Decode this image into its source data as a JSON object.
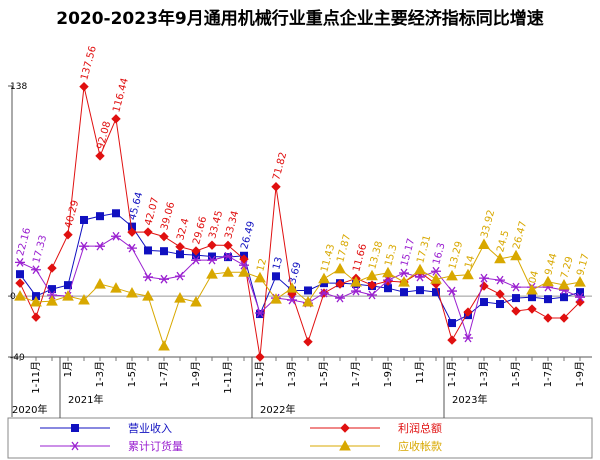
{
  "chart_data": {
    "type": "line",
    "title": "2020-2023年9月通用机械行业重点企业主要经济指标同比增速",
    "categories": [
      null,
      "1-11月",
      null,
      "1月",
      null,
      "1-3月",
      null,
      "1-5月",
      null,
      "1-7月",
      null,
      "1-9月",
      null,
      "1-11月",
      null,
      "1-1月",
      null,
      "1-3月",
      null,
      "1-5月",
      null,
      "1-7月",
      null,
      "1-9月",
      null,
      "11月",
      null,
      "1-1月",
      null,
      "1-3月",
      null,
      "1-5月",
      null,
      "1-7月",
      null,
      "1-9月"
    ],
    "year_labels": [
      "2020年",
      "2021年",
      "2022年",
      "2023年"
    ],
    "ylim": [
      -40,
      138
    ],
    "yticks": [
      138,
      0,
      -40
    ],
    "series": [
      {
        "name": "营业收入",
        "color": "#1010c0",
        "marker": "square",
        "values": [
          14.4,
          0,
          4.6,
          7.2,
          50,
          52.5,
          54.4,
          45.64,
          30,
          29.5,
          27.5,
          26.9,
          26,
          25.6,
          26.49,
          -11.8,
          13,
          3.69,
          3.7,
          8.5,
          8.5,
          7.9,
          6.6,
          5.2,
          2.6,
          3.9,
          2.6,
          -17.7,
          -12.5,
          -3.9,
          -5.2,
          -1.3,
          -0.7,
          -2,
          -0.7,
          2.6
        ],
        "value_labels": [
          null,
          null,
          null,
          null,
          null,
          null,
          null,
          "45.64",
          null,
          null,
          null,
          null,
          null,
          null,
          "26.49",
          null,
          "13",
          "3.69",
          null,
          null,
          null,
          null,
          null,
          null,
          null,
          null,
          null,
          null,
          null,
          null,
          null,
          null,
          null,
          null,
          null,
          null
        ]
      },
      {
        "name": "利润总额",
        "color": "#e01010",
        "marker": "diamond",
        "values": [
          8.5,
          -13.8,
          18.4,
          40.29,
          137.56,
          92.08,
          116.44,
          42,
          42.07,
          39.06,
          32.4,
          29.66,
          33.45,
          33.34,
          24.3,
          -40,
          71.82,
          1.3,
          -30,
          2,
          7.9,
          11.66,
          7.2,
          9.8,
          9.2,
          15.7,
          7.9,
          -28.9,
          -10.5,
          6.6,
          1.3,
          -9.8,
          -8.5,
          -14.4,
          -14.4,
          -3.9
        ],
        "value_labels": [
          null,
          null,
          null,
          "40.29",
          "137.56",
          "92.08",
          "116.44",
          null,
          "42.07",
          "39.06",
          "32.4",
          "29.66",
          "33.45",
          "33.34",
          null,
          null,
          "71.82",
          null,
          null,
          null,
          null,
          "11.66",
          null,
          null,
          null,
          null,
          null,
          null,
          null,
          null,
          null,
          null,
          null,
          null,
          null,
          null
        ]
      },
      {
        "name": "累计订货量",
        "color": "#9a20d0",
        "marker": "star",
        "values": [
          22.16,
          17.33,
          0.7,
          0,
          32.8,
          32.8,
          39.3,
          31.5,
          12.5,
          11.1,
          13.1,
          23.6,
          23.6,
          26.2,
          20.3,
          -11.1,
          -1.3,
          -2.6,
          -4.6,
          2,
          -1.3,
          3.3,
          0.7,
          10.5,
          15.17,
          12.5,
          16.3,
          3.3,
          -27.5,
          11.8,
          10.5,
          5.9,
          5.9,
          5.9,
          3.9,
          -0.7
        ],
        "value_labels": [
          "22.16",
          "17.33",
          null,
          null,
          null,
          null,
          null,
          null,
          null,
          null,
          null,
          null,
          null,
          null,
          null,
          null,
          null,
          null,
          null,
          null,
          null,
          null,
          null,
          null,
          "15.17",
          null,
          "16.3",
          null,
          null,
          null,
          null,
          null,
          null,
          null,
          null,
          null
        ]
      },
      {
        "name": "应收帐款",
        "color": "#d8a800",
        "marker": "triangle",
        "values": [
          0,
          -3.9,
          -3.3,
          0,
          -2.6,
          7.9,
          5.2,
          2,
          0,
          -32.8,
          -1.3,
          -3.9,
          14.4,
          15.7,
          15.7,
          12,
          -2,
          5.2,
          -3.9,
          11.43,
          17.87,
          9.2,
          13.38,
          15.3,
          9.2,
          17.31,
          11.1,
          13.29,
          14,
          33.92,
          24.5,
          26.47,
          4,
          9.44,
          7.29,
          9.17
        ],
        "value_labels": [
          null,
          null,
          null,
          null,
          null,
          null,
          null,
          null,
          null,
          null,
          null,
          null,
          null,
          null,
          null,
          "12",
          null,
          null,
          null,
          "11.43",
          "17.87",
          null,
          "13.38",
          "15.3",
          null,
          "17.31",
          null,
          "13.29",
          "14",
          "33.92",
          "24.5",
          "26.47",
          "04",
          "9.44",
          "7.29",
          "9.17"
        ]
      }
    ]
  }
}
